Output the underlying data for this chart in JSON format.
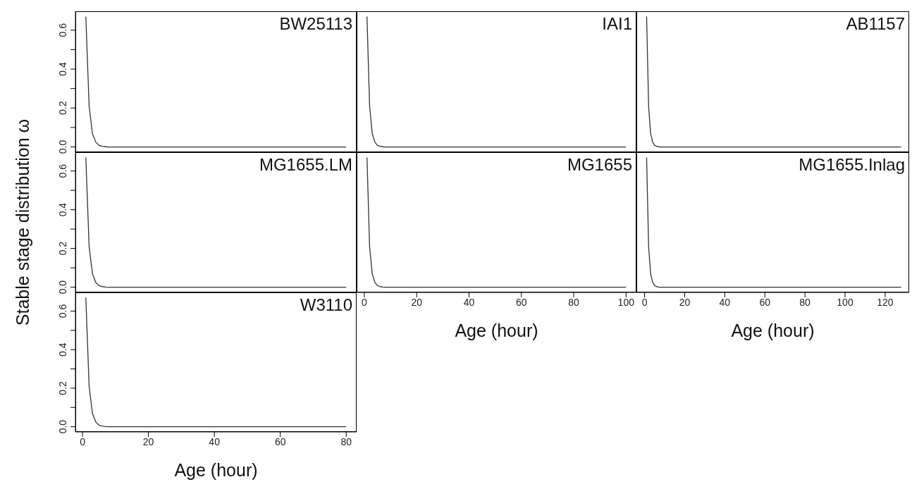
{
  "chart_data": [
    {
      "type": "line",
      "title": "BW25113",
      "x": [
        1,
        2,
        3,
        4,
        5,
        6,
        7,
        8,
        80
      ],
      "series": [
        {
          "color": "#333333",
          "values": [
            0.67,
            0.21,
            0.07,
            0.025,
            0.008,
            0.003,
            0.001,
            0,
            0
          ]
        }
      ],
      "xlim": [
        -2.16,
        83.16
      ],
      "xticks": [
        0,
        20,
        40,
        60,
        80
      ],
      "ylim": [
        -0.027,
        0.697
      ],
      "yticks": [
        {
          "value": 0,
          "label": "0.0"
        },
        {
          "value": 0.1,
          "label": null
        },
        0.2,
        {
          "value": 0.3,
          "label": null
        },
        0.4,
        {
          "value": 0.5,
          "label": null
        },
        0.6
      ],
      "tick_labels": "y",
      "grid": false,
      "legend": false,
      "marker": "none",
      "line_style": "solid"
    },
    {
      "type": "line",
      "title": "IAI1",
      "x": [
        1,
        2,
        3,
        4,
        5,
        6,
        7,
        8,
        100
      ],
      "series": [
        {
          "color": "#333333",
          "values": [
            0.67,
            0.21,
            0.07,
            0.025,
            0.008,
            0.003,
            0.001,
            0,
            0
          ]
        }
      ],
      "xlim": [
        -2.96,
        103.96
      ],
      "xticks": [
        0,
        20,
        40,
        60,
        80,
        100
      ],
      "ylim": [
        -0.027,
        0.697
      ],
      "tick_labels": false,
      "grid": false,
      "legend": false,
      "marker": "none",
      "line_style": "solid"
    },
    {
      "type": "line",
      "title": "AB1157",
      "x": [
        1,
        2,
        3,
        4,
        5,
        6,
        7,
        8,
        128
      ],
      "series": [
        {
          "color": "#333333",
          "values": [
            0.67,
            0.21,
            0.07,
            0.025,
            0.008,
            0.003,
            0.001,
            0,
            0
          ]
        }
      ],
      "xlim": [
        -4.08,
        132
      ],
      "xticks": [
        0,
        20,
        40,
        60,
        80,
        100,
        120
      ],
      "ylim": [
        -0.027,
        0.697
      ],
      "tick_labels": false,
      "grid": false,
      "legend": false,
      "marker": "none",
      "line_style": "solid"
    },
    {
      "type": "line",
      "title": "MG1655.LM",
      "ylabel": "Stable stage distribution ω",
      "x": [
        1,
        2,
        3,
        4,
        5,
        6,
        7,
        8,
        80
      ],
      "series": [
        {
          "color": "#333333",
          "values": [
            0.67,
            0.21,
            0.07,
            0.025,
            0.008,
            0.003,
            0.001,
            0,
            0
          ]
        }
      ],
      "xlim": [
        -2.16,
        83.16
      ],
      "xticks": [
        0,
        20,
        40,
        60,
        80
      ],
      "ylim": [
        -0.027,
        0.697
      ],
      "yticks": [
        {
          "value": 0,
          "label": "0.0"
        },
        {
          "value": 0.1,
          "label": null
        },
        0.2,
        {
          "value": 0.3,
          "label": null
        },
        0.4,
        {
          "value": 0.5,
          "label": null
        },
        0.6
      ],
      "tick_labels": "y",
      "grid": false,
      "legend": false,
      "marker": "none",
      "line_style": "solid"
    },
    {
      "type": "line",
      "title": "MG1655",
      "xlabel": "Age (hour)",
      "x": [
        1,
        2,
        3,
        4,
        5,
        6,
        7,
        8,
        100
      ],
      "series": [
        {
          "color": "#333333",
          "values": [
            0.67,
            0.21,
            0.07,
            0.025,
            0.008,
            0.003,
            0.001,
            0,
            0
          ]
        }
      ],
      "xlim": [
        -2.96,
        103.96
      ],
      "xticks": [
        0,
        20,
        40,
        60,
        80,
        100
      ],
      "ylim": [
        -0.027,
        0.697
      ],
      "tick_labels": "x",
      "grid": false,
      "legend": false,
      "marker": "none",
      "line_style": "solid"
    },
    {
      "type": "line",
      "title": "MG1655.Inlag",
      "xlabel": "Age (hour)",
      "x": [
        1,
        2,
        3,
        4,
        5,
        6,
        7,
        8,
        128
      ],
      "series": [
        {
          "color": "#333333",
          "values": [
            0.67,
            0.21,
            0.07,
            0.025,
            0.008,
            0.003,
            0.001,
            0,
            0
          ]
        }
      ],
      "xlim": [
        -4.08,
        132
      ],
      "xticks": [
        0,
        20,
        40,
        60,
        80,
        100,
        120
      ],
      "ylim": [
        -0.027,
        0.697
      ],
      "tick_labels": "x",
      "grid": false,
      "legend": false,
      "marker": "none",
      "line_style": "solid"
    },
    {
      "type": "line",
      "title": "W3110",
      "xlabel": "Age (hour)",
      "x": [
        1,
        2,
        3,
        4,
        5,
        6,
        7,
        8,
        80
      ],
      "series": [
        {
          "color": "#333333",
          "values": [
            0.67,
            0.21,
            0.07,
            0.025,
            0.008,
            0.003,
            0.001,
            0,
            0
          ]
        }
      ],
      "xlim": [
        -2.16,
        83.16
      ],
      "xticks": [
        0,
        20,
        40,
        60,
        80
      ],
      "ylim": [
        -0.027,
        0.697
      ],
      "yticks": [
        {
          "value": 0,
          "label": "0.0"
        },
        {
          "value": 0.1,
          "label": null
        },
        0.2,
        {
          "value": 0.3,
          "label": null
        },
        0.4,
        {
          "value": 0.5,
          "label": null
        },
        0.6
      ],
      "grid": false,
      "legend": false,
      "marker": "none",
      "line_style": "solid"
    }
  ]
}
